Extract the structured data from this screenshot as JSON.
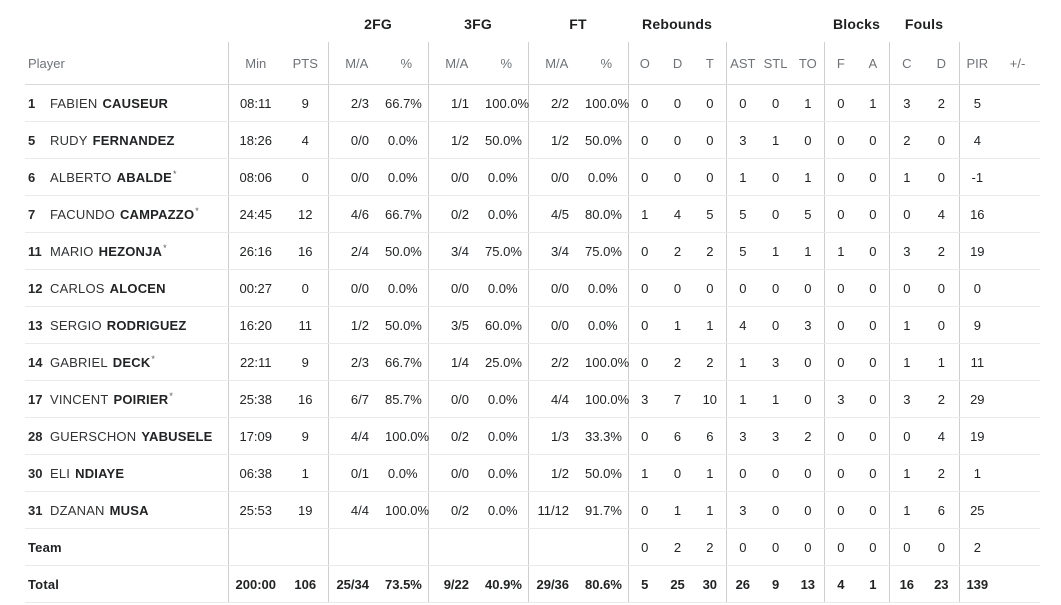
{
  "header": {
    "groups": [
      "2FG",
      "3FG",
      "FT",
      "Rebounds",
      "Blocks",
      "Fouls"
    ],
    "cols": [
      "Player",
      "Min",
      "PTS",
      "M/A",
      "%",
      "M/A",
      "%",
      "M/A",
      "%",
      "O",
      "D",
      "T",
      "AST",
      "STL",
      "TO",
      "F",
      "A",
      "C",
      "D",
      "PIR",
      "+/-"
    ]
  },
  "rows": [
    {
      "jersey": "1",
      "first": "FABIEN",
      "last": "CAUSEUR",
      "starter": false,
      "stats": [
        "08:11",
        "9",
        "2/3",
        "66.7%",
        "1/1",
        "100.0%",
        "2/2",
        "100.0%",
        "0",
        "0",
        "0",
        "0",
        "0",
        "1",
        "0",
        "1",
        "3",
        "2",
        "5",
        ""
      ]
    },
    {
      "jersey": "5",
      "first": "RUDY",
      "last": "FERNANDEZ",
      "starter": false,
      "stats": [
        "18:26",
        "4",
        "0/0",
        "0.0%",
        "1/2",
        "50.0%",
        "1/2",
        "50.0%",
        "0",
        "0",
        "0",
        "3",
        "1",
        "0",
        "0",
        "0",
        "2",
        "0",
        "4",
        ""
      ]
    },
    {
      "jersey": "6",
      "first": "ALBERTO",
      "last": "ABALDE",
      "starter": true,
      "stats": [
        "08:06",
        "0",
        "0/0",
        "0.0%",
        "0/0",
        "0.0%",
        "0/0",
        "0.0%",
        "0",
        "0",
        "0",
        "1",
        "0",
        "1",
        "0",
        "0",
        "1",
        "0",
        "-1",
        ""
      ]
    },
    {
      "jersey": "7",
      "first": "FACUNDO",
      "last": "CAMPAZZO",
      "starter": true,
      "stats": [
        "24:45",
        "12",
        "4/6",
        "66.7%",
        "0/2",
        "0.0%",
        "4/5",
        "80.0%",
        "1",
        "4",
        "5",
        "5",
        "0",
        "5",
        "0",
        "0",
        "0",
        "4",
        "16",
        ""
      ]
    },
    {
      "jersey": "11",
      "first": "MARIO",
      "last": "HEZONJA",
      "starter": true,
      "stats": [
        "26:16",
        "16",
        "2/4",
        "50.0%",
        "3/4",
        "75.0%",
        "3/4",
        "75.0%",
        "0",
        "2",
        "2",
        "5",
        "1",
        "1",
        "1",
        "0",
        "3",
        "2",
        "19",
        ""
      ]
    },
    {
      "jersey": "12",
      "first": "CARLOS",
      "last": "ALOCEN",
      "starter": false,
      "stats": [
        "00:27",
        "0",
        "0/0",
        "0.0%",
        "0/0",
        "0.0%",
        "0/0",
        "0.0%",
        "0",
        "0",
        "0",
        "0",
        "0",
        "0",
        "0",
        "0",
        "0",
        "0",
        "0",
        ""
      ]
    },
    {
      "jersey": "13",
      "first": "SERGIO",
      "last": "RODRIGUEZ",
      "starter": false,
      "stats": [
        "16:20",
        "11",
        "1/2",
        "50.0%",
        "3/5",
        "60.0%",
        "0/0",
        "0.0%",
        "0",
        "1",
        "1",
        "4",
        "0",
        "3",
        "0",
        "0",
        "1",
        "0",
        "9",
        ""
      ]
    },
    {
      "jersey": "14",
      "first": "GABRIEL",
      "last": "DECK",
      "starter": true,
      "stats": [
        "22:11",
        "9",
        "2/3",
        "66.7%",
        "1/4",
        "25.0%",
        "2/2",
        "100.0%",
        "0",
        "2",
        "2",
        "1",
        "3",
        "0",
        "0",
        "0",
        "1",
        "1",
        "11",
        ""
      ]
    },
    {
      "jersey": "17",
      "first": "VINCENT",
      "last": "POIRIER",
      "starter": true,
      "stats": [
        "25:38",
        "16",
        "6/7",
        "85.7%",
        "0/0",
        "0.0%",
        "4/4",
        "100.0%",
        "3",
        "7",
        "10",
        "1",
        "1",
        "0",
        "3",
        "0",
        "3",
        "2",
        "29",
        ""
      ]
    },
    {
      "jersey": "28",
      "first": "GUERSCHON",
      "last": "YABUSELE",
      "starter": false,
      "stats": [
        "17:09",
        "9",
        "4/4",
        "100.0%",
        "0/2",
        "0.0%",
        "1/3",
        "33.3%",
        "0",
        "6",
        "6",
        "3",
        "3",
        "2",
        "0",
        "0",
        "0",
        "4",
        "19",
        ""
      ]
    },
    {
      "jersey": "30",
      "first": "ELI",
      "last": "NDIAYE",
      "starter": false,
      "stats": [
        "06:38",
        "1",
        "0/1",
        "0.0%",
        "0/0",
        "0.0%",
        "1/2",
        "50.0%",
        "1",
        "0",
        "1",
        "0",
        "0",
        "0",
        "0",
        "0",
        "1",
        "2",
        "1",
        ""
      ]
    },
    {
      "jersey": "31",
      "first": "DZANAN",
      "last": "MUSA",
      "starter": false,
      "stats": [
        "25:53",
        "19",
        "4/4",
        "100.0%",
        "0/2",
        "0.0%",
        "11/12",
        "91.7%",
        "0",
        "1",
        "1",
        "3",
        "0",
        "0",
        "0",
        "0",
        "1",
        "6",
        "25",
        ""
      ]
    },
    {
      "label": "Team",
      "stats": [
        "",
        "",
        "",
        "",
        "",
        "",
        "",
        "",
        "0",
        "2",
        "2",
        "0",
        "0",
        "0",
        "0",
        "0",
        "0",
        "0",
        "2",
        ""
      ]
    },
    {
      "label": "Total",
      "stats": [
        "200:00",
        "106",
        "25/34",
        "73.5%",
        "9/22",
        "40.9%",
        "29/36",
        "80.6%",
        "5",
        "25",
        "30",
        "26",
        "9",
        "13",
        "4",
        "1",
        "16",
        "23",
        "139",
        ""
      ]
    }
  ]
}
